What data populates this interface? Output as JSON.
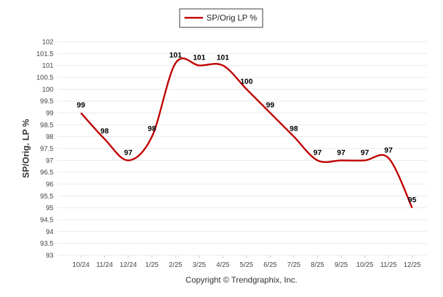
{
  "chart_data": {
    "type": "line",
    "ylabel": "SP/Orig. LP %",
    "legend": {
      "position": "top-center",
      "entries": [
        "SP/Orig LP %"
      ]
    },
    "ylim": [
      93,
      102
    ],
    "yticks": [
      "102",
      "101.5",
      "101",
      "100.5",
      "100",
      "99.5",
      "99",
      "98.5",
      "98",
      "97.5",
      "97",
      "96.5",
      "96",
      "95.5",
      "95",
      "94.5",
      "94",
      "93.5",
      "93"
    ],
    "grid": true,
    "categories": [
      "10/24",
      "11/24",
      "12/24",
      "1/25",
      "2/25",
      "3/25",
      "4/25",
      "5/25",
      "6/25",
      "7/25",
      "8/25",
      "9/25",
      "10/25",
      "11/25",
      "12/25"
    ],
    "series": [
      {
        "name": "SP/Orig LP %",
        "color": "#c00000",
        "values": [
          99,
          97.9,
          97,
          98,
          101.1,
          101,
          101,
          100,
          99,
          98,
          97,
          97,
          97,
          97.1,
          95
        ],
        "labels": [
          "99",
          "98",
          "97",
          "98",
          "101",
          "101",
          "101",
          "100",
          "99",
          "98",
          "97",
          "97",
          "97",
          "97",
          "95"
        ]
      }
    ],
    "footer": "Copyright © Trendgraphix, Inc."
  }
}
